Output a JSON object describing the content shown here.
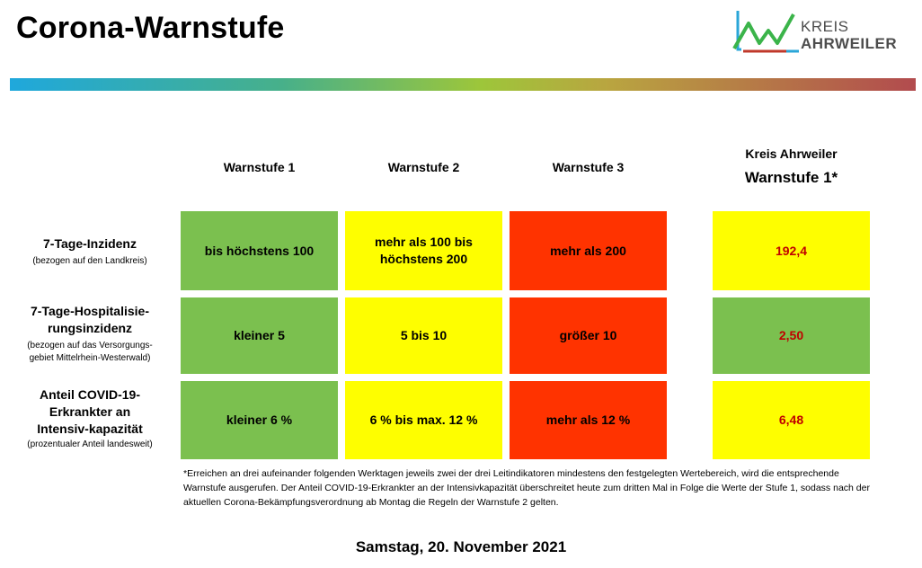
{
  "header": {
    "title": "Corona-Warnstufe",
    "logo": {
      "line1": "KREIS",
      "line2": "AHRWEILER",
      "icon": "aw-logo-mark"
    }
  },
  "columns": [
    "Warnstufe 1",
    "Warnstufe 2",
    "Warnstufe 3"
  ],
  "kreis": {
    "name": "Kreis Ahrweiler",
    "level": "Warnstufe 1*"
  },
  "rows": [
    {
      "label": "7-Tage-Inzidenz",
      "sub": "(bezogen auf den Landkreis)",
      "cells": [
        "bis höchstens 100",
        "mehr als 100 bis höchstens 200",
        "mehr als 200"
      ],
      "value": "192,4",
      "value_color": "yellow"
    },
    {
      "label": "7-Tage-Hospitalisie-rungsinzidenz",
      "sub": "(bezogen auf das Versorgungs-gebiet Mittelrhein-Westerwald)",
      "cells": [
        "kleiner 5",
        "5 bis 10",
        "größer 10"
      ],
      "value": "2,50",
      "value_color": "green"
    },
    {
      "label": "Anteil COVID-19-Erkrankter an Intensiv-kapazität",
      "sub": "(prozentualer Anteil landesweit)",
      "cells": [
        "kleiner 6 %",
        "6 % bis max. 12 %",
        "mehr als 12 %"
      ],
      "value": "6,48",
      "value_color": "yellow"
    }
  ],
  "colors": {
    "green": "#7bc04f",
    "yellow": "#fefe00",
    "red": "#ff3300",
    "value_text": "#c00000"
  },
  "footnote": "*Erreichen an drei aufeinander folgenden Werktagen jeweils zwei der drei Leitindikatoren mindestens den festgelegten Wertebereich, wird die entsprechende Warnstufe ausgerufen. Der Anteil COVID-19-Erkrankter an der Intensivkapazität überschreitet heute zum dritten Mal in Folge die Werte der Stufe 1, sodass nach der aktuellen Corona-Bekämpfungsverordnung ab Montag die Regeln der Warnstufe 2 gelten.",
  "date": "Samstag, 20. November 2021"
}
